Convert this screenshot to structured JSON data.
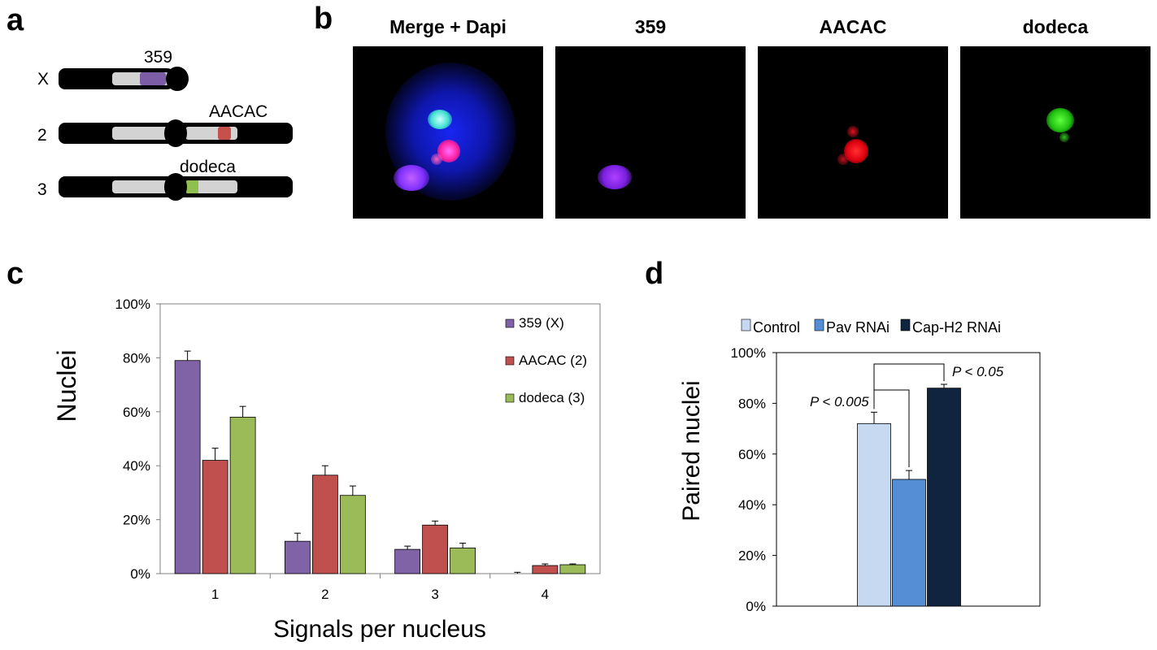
{
  "panels": {
    "a": "a",
    "b": "b",
    "c": "c",
    "d": "d"
  },
  "panel_a": {
    "chromosomes": [
      {
        "label": "X",
        "probe": "359",
        "probe_color": "#7d5ea6"
      },
      {
        "label": "2",
        "probe": "AACAC",
        "probe_color": "#c8504a"
      },
      {
        "label": "3",
        "probe": "dodeca",
        "probe_color": "#8fc04f"
      }
    ]
  },
  "panel_b": {
    "titles": [
      "Merge + Dapi",
      "359",
      "AACAC",
      "dodeca"
    ],
    "channel_colors": {
      "dapi": "#1020ff",
      "359": "#9a2cff",
      "AACAC": "#ff1020",
      "dodeca": "#30e020"
    }
  },
  "chart_data": [
    {
      "type": "bar",
      "panel": "c",
      "categories": [
        "1",
        "2",
        "3",
        "4"
      ],
      "series": [
        {
          "name": "359 (X)",
          "color": "#7f63a6",
          "values": [
            79,
            12,
            9,
            0
          ],
          "errors": [
            3.5,
            3,
            1.2,
            0.5
          ]
        },
        {
          "name": "AACAC (2)",
          "color": "#c0504d",
          "values": [
            42,
            36.5,
            18,
            3
          ],
          "errors": [
            4.5,
            3.5,
            1.5,
            0.6
          ]
        },
        {
          "name": "dodeca (3)",
          "color": "#9bbb59",
          "values": [
            58,
            29,
            9.5,
            3.3
          ],
          "errors": [
            4,
            3.5,
            1.8,
            0.3
          ]
        }
      ],
      "yticks": [
        "0%",
        "20%",
        "40%",
        "60%",
        "80%",
        "100%"
      ],
      "ylim": [
        0,
        100
      ],
      "xlabel": "Signals per nucleus",
      "ylabel": "Nuclei",
      "legend_position": "top-right"
    },
    {
      "type": "bar",
      "panel": "d",
      "categories": [
        ""
      ],
      "series": [
        {
          "name": "Control",
          "color": "#c6d9f1",
          "values": [
            72
          ],
          "errors": [
            4.5
          ]
        },
        {
          "name": "Pav RNAi",
          "color": "#558ed5",
          "values": [
            50
          ],
          "errors": [
            3.5
          ]
        },
        {
          "name": "Cap-H2 RNAi",
          "color": "#10243f",
          "values": [
            86
          ],
          "errors": [
            1.5
          ]
        }
      ],
      "yticks": [
        "0%",
        "20%",
        "40%",
        "60%",
        "80%",
        "100%"
      ],
      "ylim": [
        0,
        100
      ],
      "xlabel": "",
      "ylabel": "Paired nuclei",
      "legend_position": "top",
      "annotations": [
        "P < 0.005",
        "P < 0.05"
      ]
    }
  ]
}
